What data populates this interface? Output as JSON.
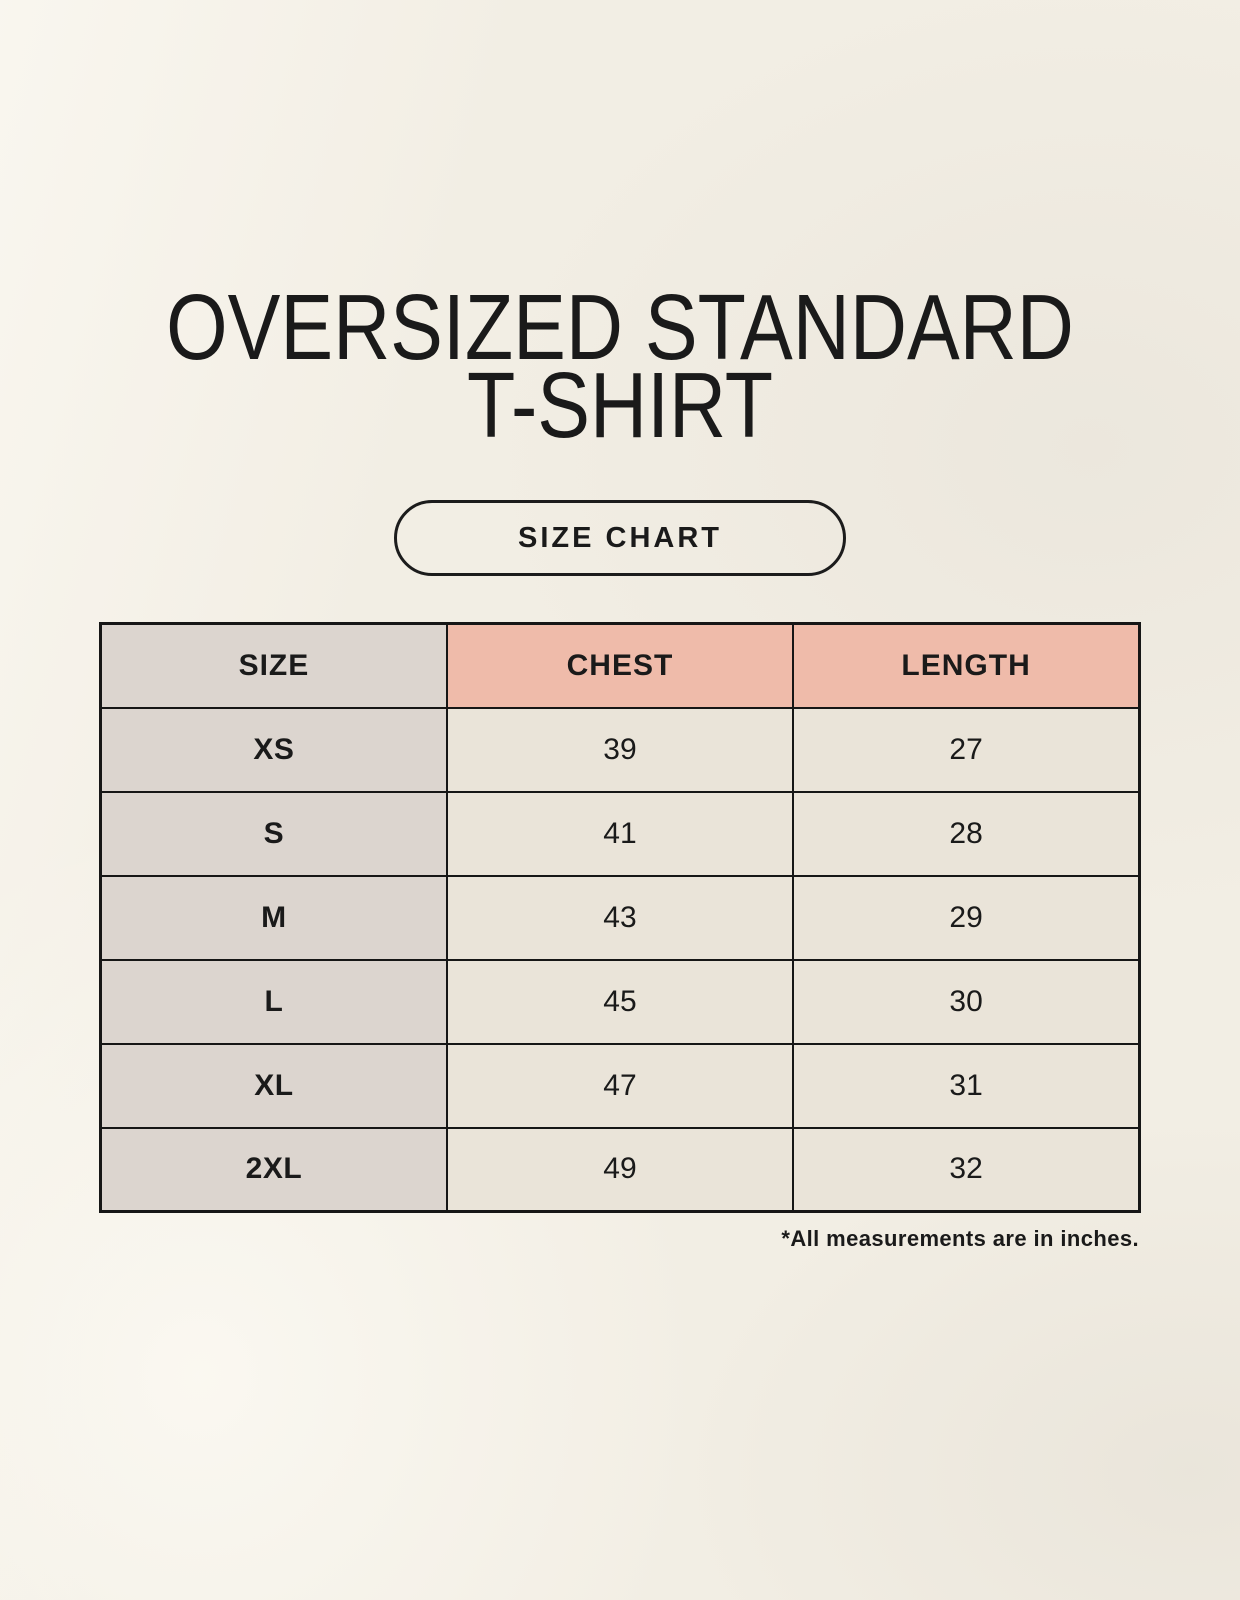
{
  "page_title": {
    "line1": "OVERSIZED STANDARD",
    "line2": "T-SHIRT"
  },
  "badge_label": "SIZE CHART",
  "footnote": "*All measurements are in inches.",
  "chart_data": {
    "type": "table",
    "title": "OVERSIZED STANDARD T-SHIRT",
    "subtitle": "SIZE CHART",
    "columns": [
      "SIZE",
      "CHEST",
      "LENGTH"
    ],
    "rows": [
      [
        "XS",
        "39",
        "27"
      ],
      [
        "S",
        "41",
        "28"
      ],
      [
        "M",
        "43",
        "29"
      ],
      [
        "L",
        "45",
        "30"
      ],
      [
        "XL",
        "47",
        "31"
      ],
      [
        "2XL",
        "49",
        "32"
      ]
    ],
    "units": "inches"
  },
  "colors": {
    "background": "#f2eee4",
    "header_accent": "#efbbaa",
    "size_column": "#dcd5cf",
    "data_cell": "#eae4d9",
    "border": "#161616",
    "text": "#1a1a1a"
  }
}
